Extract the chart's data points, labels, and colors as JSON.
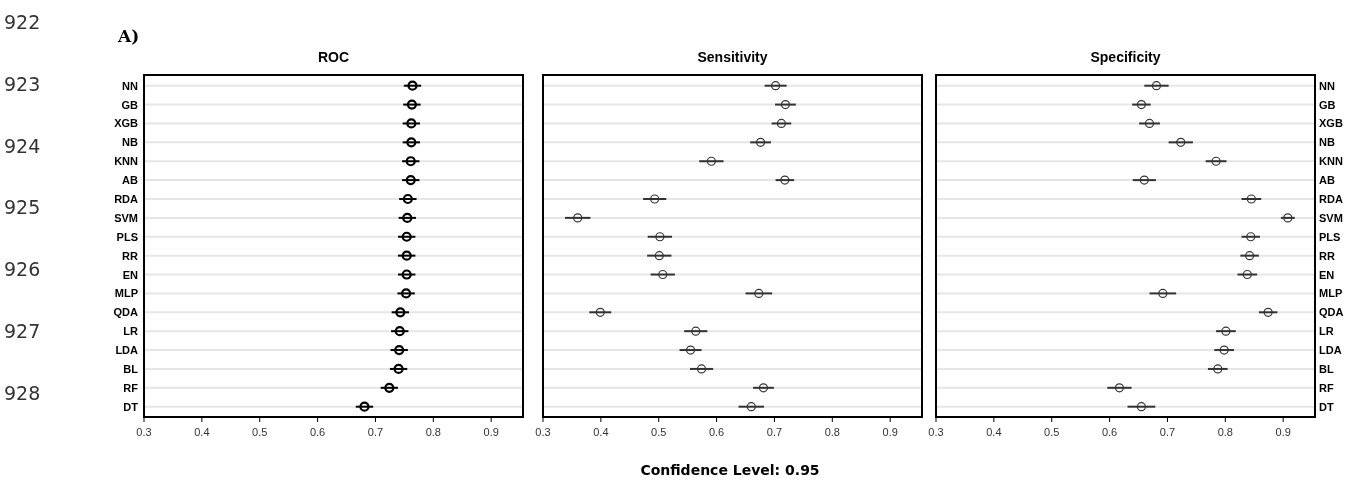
{
  "chart_data": [
    {
      "type": "scatter",
      "orientation": "horizontal",
      "title": "ROC",
      "categories": [
        "NN",
        "GB",
        "XGB",
        "NB",
        "KNN",
        "AB",
        "RDA",
        "SVM",
        "PLS",
        "RR",
        "EN",
        "MLP",
        "QDA",
        "LR",
        "LDA",
        "BL",
        "RF",
        "DT"
      ],
      "xlim": [
        0.3,
        0.955
      ],
      "xticks": [
        0.3,
        0.4,
        0.5,
        0.6,
        0.7,
        0.8,
        0.9
      ],
      "grid": "y",
      "marker": "circle",
      "tick_labels": [
        "x",
        "y"
      ],
      "series": [
        {
          "color": "#000000",
          "values": [
            0.764,
            0.763,
            0.762,
            0.762,
            0.761,
            0.761,
            0.756,
            0.755,
            0.754,
            0.754,
            0.754,
            0.753,
            0.743,
            0.742,
            0.741,
            0.74,
            0.724,
            0.681
          ],
          "errors": [
            0.015,
            0.015,
            0.015,
            0.015,
            0.015,
            0.015,
            0.015,
            0.015,
            0.015,
            0.015,
            0.015,
            0.015,
            0.015,
            0.015,
            0.015,
            0.015,
            0.015,
            0.015
          ]
        }
      ],
      "annotations": [
        "922",
        "923",
        "924",
        "925",
        "926",
        "927",
        "928",
        "A)",
        "Confidence Level: 0.95"
      ]
    },
    {
      "type": "scatter",
      "orientation": "horizontal",
      "title": "Sensitivity",
      "categories": [
        null,
        null,
        null,
        null,
        null,
        null,
        null,
        null,
        null,
        null,
        null,
        null,
        null,
        null,
        null,
        null,
        null,
        null
      ],
      "xlim": [
        0.3,
        0.955
      ],
      "xticks": [
        0.3,
        0.4,
        0.5,
        0.6,
        0.7,
        0.8,
        0.9
      ],
      "grid": "y",
      "marker": "circle",
      "tick_labels": "x",
      "series": [
        {
          "color": "#333333",
          "values": [
            0.702,
            0.719,
            0.712,
            0.676,
            0.591,
            0.718,
            0.493,
            0.36,
            0.502,
            0.501,
            0.507,
            0.673,
            0.399,
            0.564,
            0.555,
            0.574,
            0.681,
            0.66
          ],
          "errors": [
            0.019,
            0.018,
            0.017,
            0.018,
            0.021,
            0.016,
            0.02,
            0.022,
            0.021,
            0.021,
            0.021,
            0.023,
            0.019,
            0.02,
            0.019,
            0.02,
            0.018,
            0.022
          ]
        }
      ]
    },
    {
      "type": "scatter",
      "orientation": "horizontal",
      "title": "Specificity",
      "categories": [
        "NN",
        "GB",
        "XGB",
        "NB",
        "KNN",
        "AB",
        "RDA",
        "SVM",
        "PLS",
        "RR",
        "EN",
        "MLP",
        "QDA",
        "LR",
        "LDA",
        "BL",
        "RF",
        "DT"
      ],
      "xlim": [
        0.3,
        0.955
      ],
      "xticks": [
        0.3,
        0.4,
        0.5,
        0.6,
        0.7,
        0.8,
        0.9
      ],
      "grid": "y",
      "marker": "circle",
      "tick_labels": [
        "x",
        "y"
      ],
      "series": [
        {
          "color": "#333333",
          "values": [
            0.681,
            0.655,
            0.669,
            0.723,
            0.784,
            0.66,
            0.845,
            0.908,
            0.844,
            0.842,
            0.838,
            0.692,
            0.874,
            0.801,
            0.798,
            0.787,
            0.617,
            0.655
          ],
          "errors": [
            0.021,
            0.016,
            0.018,
            0.021,
            0.018,
            0.02,
            0.017,
            0.012,
            0.016,
            0.016,
            0.017,
            0.023,
            0.016,
            0.017,
            0.017,
            0.017,
            0.021,
            0.024
          ]
        }
      ]
    }
  ]
}
